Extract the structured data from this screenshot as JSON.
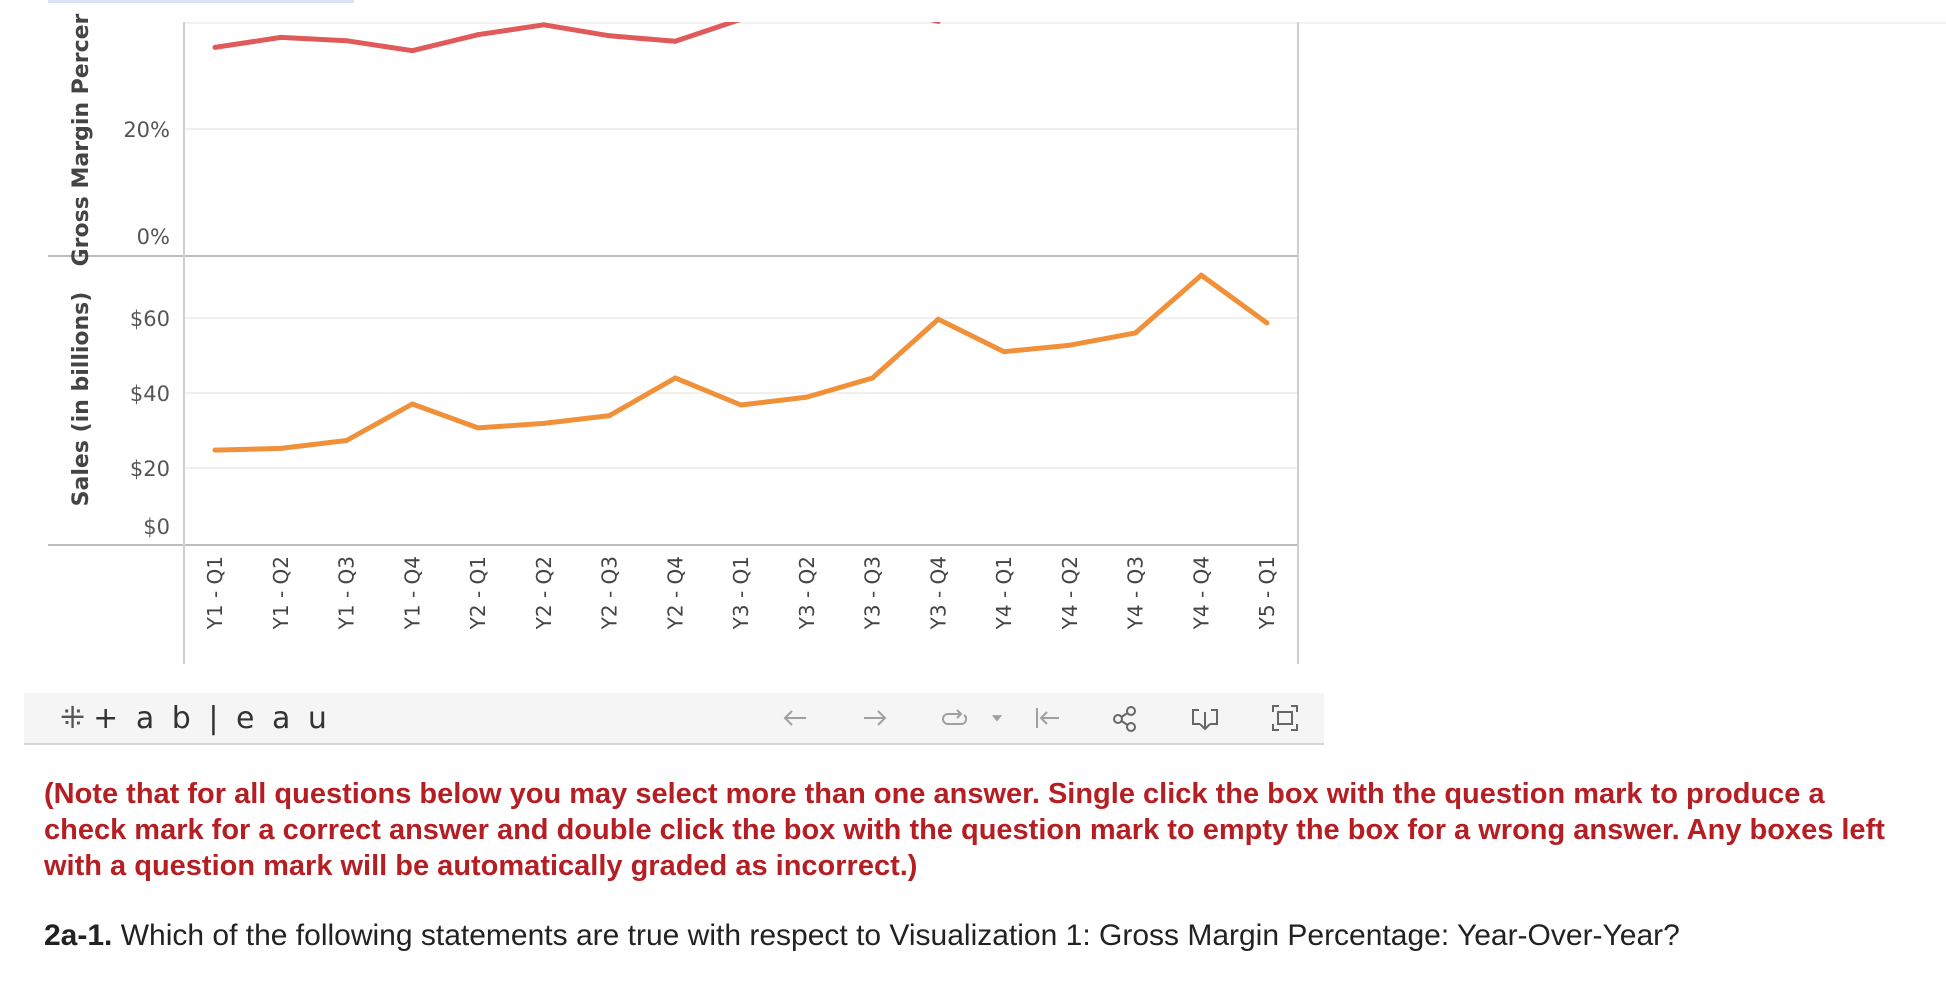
{
  "chart_data": [
    {
      "type": "line",
      "ylabel": "Gross Margin Percer",
      "y_ticks": [
        "20%",
        "0%"
      ],
      "ylim": [
        0,
        39
      ],
      "color": "#e05a5a",
      "categories": [
        "Y1 - Q1",
        "Y1 - Q2",
        "Y1 - Q3",
        "Y1 - Q4",
        "Y2 - Q1",
        "Y2 - Q2",
        "Y2 - Q3",
        "Y2 - Q4",
        "Y3 - Q1",
        "Y3 - Q2",
        "Y3 - Q3",
        "Y3 - Q4",
        "Y4 - Q1",
        "Y4 - Q2",
        "Y4 - Q3",
        "Y4 - Q4",
        "Y5 - Q1"
      ],
      "values": [
        34.4,
        36.2,
        35.6,
        33.8,
        36.7,
        38.5,
        36.5,
        35.5,
        39.5,
        41,
        42,
        39.1,
        null,
        null,
        null,
        null,
        null
      ]
    },
    {
      "type": "line",
      "ylabel": "Sales (in billions)",
      "y_ticks": [
        "$60",
        "$40",
        "$20",
        "$0"
      ],
      "ylim": [
        -0.3,
        75.5
      ],
      "color": "#f0913a",
      "categories": [
        "Y1 - Q1",
        "Y1 - Q2",
        "Y1 - Q3",
        "Y1 - Q4",
        "Y2 - Q1",
        "Y2 - Q2",
        "Y2 - Q3",
        "Y2 - Q4",
        "Y3 - Q1",
        "Y3 - Q2",
        "Y3 - Q3",
        "Y3 - Q4",
        "Y4 - Q1",
        "Y4 - Q2",
        "Y4 - Q3",
        "Y4 - Q4",
        "Y5 - Q1"
      ],
      "values": [
        22.5,
        23,
        25.3,
        36,
        29,
        30.3,
        32.6,
        43.6,
        35.7,
        38,
        43.6,
        60.8,
        51.3,
        53.2,
        56.8,
        73.7,
        59.7
      ]
    }
  ],
  "toolbar": {
    "logo_mark": "⁜",
    "logo_text": "+ a b | e a u",
    "icons": [
      "undo-arrow-icon",
      "redo-arrow-icon",
      "replay-icon",
      "dropdown-caret-icon",
      "reset-to-start-icon",
      "share-icon",
      "download-icon",
      "fullscreen-icon"
    ]
  },
  "note": "(Note that for all questions below you may select more than one answer. Single click the box with the question mark to produce a check mark for a correct answer and double click the box with the question mark to empty the box for a wrong answer. Any boxes left with a question mark will be automatically graded as incorrect.)",
  "question": {
    "number": "2a-1.",
    "text": " Which of the following statements are true with respect to Visualization 1: Gross Margin Percentage: Year-Over-Year?"
  }
}
